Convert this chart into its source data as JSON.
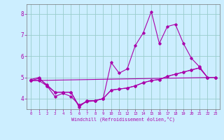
{
  "xlabel": "Windchill (Refroidissement éolien,°C)",
  "bg_color": "#cceeff",
  "line_color": "#aa00aa",
  "grid_color": "#99cccc",
  "xmin": -0.5,
  "xmax": 23.5,
  "ymin": 3.5,
  "ymax": 8.45,
  "yticks": [
    4,
    5,
    6,
    7,
    8
  ],
  "xticks": [
    0,
    1,
    2,
    3,
    4,
    5,
    6,
    7,
    8,
    9,
    10,
    11,
    12,
    13,
    14,
    15,
    16,
    17,
    18,
    19,
    20,
    21,
    22,
    23
  ],
  "line1_x": [
    0,
    1,
    2,
    3,
    4,
    5,
    6,
    7,
    8,
    9,
    10,
    11,
    12,
    13,
    14,
    15,
    16,
    17,
    18,
    19,
    20,
    21,
    22,
    23
  ],
  "line1_y": [
    4.9,
    5.0,
    4.6,
    4.3,
    4.3,
    4.3,
    3.6,
    3.9,
    3.9,
    4.0,
    5.7,
    5.2,
    5.4,
    6.5,
    7.1,
    8.1,
    6.6,
    7.4,
    7.5,
    6.6,
    5.9,
    5.5,
    5.0,
    5.0
  ],
  "line2_x": [
    0,
    1,
    2,
    3,
    4,
    5,
    6,
    7,
    8,
    9,
    10,
    11,
    12,
    13,
    14,
    15,
    16,
    17,
    18,
    19,
    20,
    21,
    22,
    23
  ],
  "line2_y": [
    4.85,
    4.85,
    4.6,
    4.1,
    4.25,
    4.1,
    3.7,
    3.85,
    3.9,
    4.0,
    4.4,
    4.45,
    4.5,
    4.6,
    4.75,
    4.85,
    4.9,
    5.05,
    5.15,
    5.25,
    5.35,
    5.45,
    5.0,
    5.0
  ],
  "line3_x": [
    0,
    1,
    2,
    3,
    4,
    5,
    6,
    7,
    8,
    9,
    10,
    11,
    12,
    13,
    14,
    15,
    16,
    17,
    18,
    19,
    20,
    21,
    22,
    23
  ],
  "line3_y": [
    4.85,
    4.95,
    4.65,
    4.3,
    4.3,
    4.3,
    3.65,
    3.9,
    3.9,
    4.0,
    4.4,
    4.45,
    4.5,
    4.6,
    4.75,
    4.85,
    4.9,
    5.05,
    5.15,
    5.25,
    5.35,
    5.45,
    5.0,
    5.0
  ],
  "line4_x": [
    0,
    23
  ],
  "line4_y": [
    4.85,
    5.0
  ]
}
